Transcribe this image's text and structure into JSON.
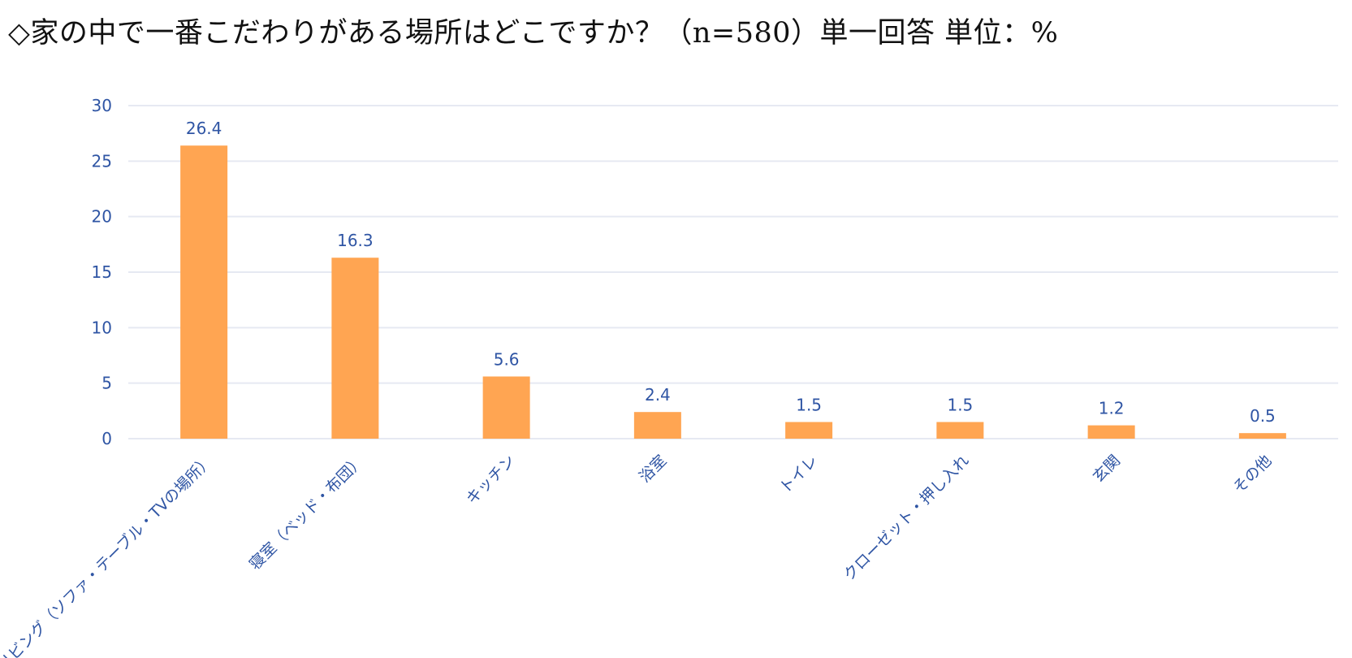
{
  "title": "◇家の中で一番こだわりがある場所はどこですか？（n=580）単一回答 単位：%",
  "colors": {
    "bar": "#FFA552",
    "axis_text": "#2F55A4",
    "label_text": "#2F55A4",
    "grid": "#E6E9F2"
  },
  "chart_data": {
    "type": "bar",
    "categories": [
      "リビング（ソファ・テーブル・TVの場所）",
      "寝室（ベッド・布団）",
      "キッチン",
      "浴室",
      "トイレ",
      "クローゼット・押し入れ",
      "玄関",
      "その他"
    ],
    "values": [
      26.4,
      16.3,
      5.6,
      2.4,
      1.5,
      1.5,
      1.2,
      0.5
    ],
    "data_labels": [
      "26.4",
      "16.3",
      "5.6",
      "2.4",
      "1.5",
      "1.5",
      "1.2",
      "0.5"
    ],
    "yticks": [
      0,
      5,
      10,
      15,
      20,
      25,
      30
    ],
    "ylim": [
      0,
      30
    ],
    "grid": true,
    "legend": "none",
    "xlabel": "",
    "ylabel": ""
  }
}
